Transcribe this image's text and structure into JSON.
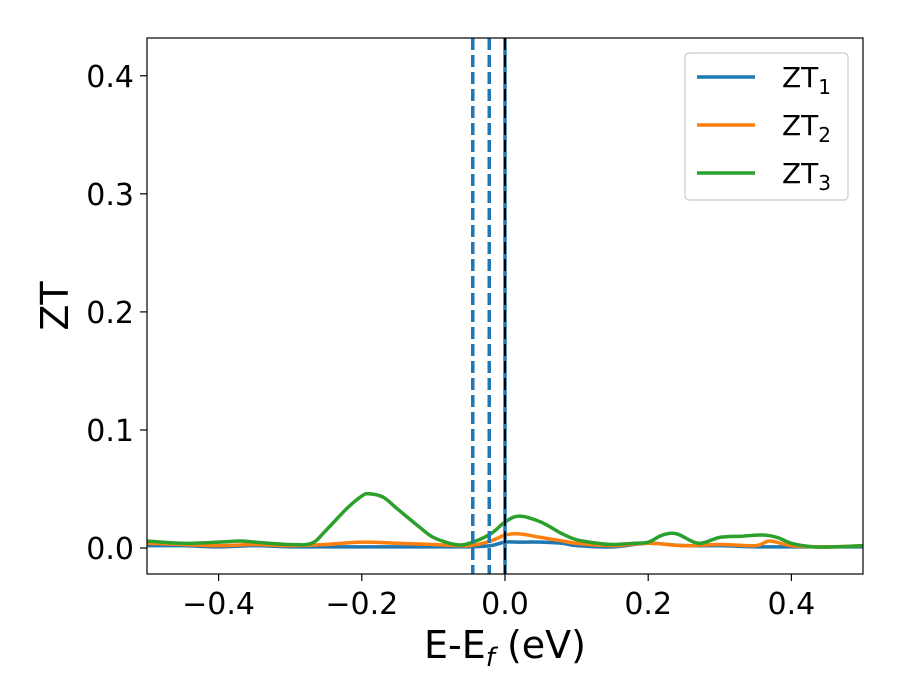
{
  "chart_data": {
    "type": "line",
    "xlabel": "E-E",
    "xlabel_sub": "f",
    "xlabel_unit": " (eV)",
    "ylabel": "ZT",
    "xlim": [
      -0.5,
      0.5
    ],
    "ylim": [
      -0.022,
      0.432
    ],
    "xticks": [
      -0.4,
      -0.2,
      0.0,
      0.2,
      0.4
    ],
    "xtick_labels": [
      "−0.4",
      "−0.2",
      "0.0",
      "0.2",
      "0.4"
    ],
    "yticks": [
      0.0,
      0.1,
      0.2,
      0.3,
      0.4
    ],
    "ytick_labels": [
      "0.0",
      "0.1",
      "0.2",
      "0.3",
      "0.4"
    ],
    "grid": false,
    "legend_position": "top-right",
    "series": [
      {
        "name": "ZT",
        "name_sub": "1",
        "color": "#1f77b4",
        "x": [
          -0.5,
          -0.45,
          -0.4,
          -0.35,
          -0.3,
          -0.25,
          -0.2,
          -0.15,
          -0.1,
          -0.05,
          -0.02,
          0.0,
          0.02,
          0.05,
          0.08,
          0.1,
          0.15,
          0.2,
          0.25,
          0.3,
          0.35,
          0.4,
          0.45,
          0.5
        ],
        "y": [
          0.002,
          0.002,
          0.001,
          0.002,
          0.001,
          0.001,
          0.001,
          0.001,
          0.001,
          0.001,
          0.002,
          0.005,
          0.005,
          0.005,
          0.004,
          0.002,
          0.001,
          0.004,
          0.002,
          0.002,
          0.001,
          0.001,
          0.001,
          0.001
        ]
      },
      {
        "name": "ZT",
        "name_sub": "2",
        "color": "#ff7f0e",
        "x": [
          -0.5,
          -0.45,
          -0.4,
          -0.35,
          -0.3,
          -0.25,
          -0.2,
          -0.15,
          -0.1,
          -0.05,
          -0.02,
          0.0,
          0.02,
          0.05,
          0.08,
          0.1,
          0.15,
          0.2,
          0.25,
          0.3,
          0.35,
          0.37,
          0.4,
          0.45,
          0.5
        ],
        "y": [
          0.004,
          0.003,
          0.002,
          0.003,
          0.002,
          0.003,
          0.005,
          0.004,
          0.003,
          0.002,
          0.006,
          0.011,
          0.012,
          0.009,
          0.006,
          0.004,
          0.002,
          0.004,
          0.002,
          0.003,
          0.002,
          0.006,
          0.002,
          0.001,
          0.002
        ]
      },
      {
        "name": "ZT",
        "name_sub": "3",
        "color": "#2ca02c",
        "x": [
          -0.5,
          -0.45,
          -0.4,
          -0.37,
          -0.35,
          -0.3,
          -0.27,
          -0.25,
          -0.22,
          -0.2,
          -0.19,
          -0.17,
          -0.15,
          -0.12,
          -0.1,
          -0.07,
          -0.05,
          -0.02,
          0.0,
          0.02,
          0.05,
          0.08,
          0.1,
          0.13,
          0.15,
          0.18,
          0.2,
          0.22,
          0.24,
          0.27,
          0.3,
          0.33,
          0.36,
          0.38,
          0.4,
          0.43,
          0.46,
          0.5
        ],
        "y": [
          0.006,
          0.004,
          0.005,
          0.006,
          0.005,
          0.003,
          0.004,
          0.015,
          0.034,
          0.044,
          0.046,
          0.043,
          0.033,
          0.018,
          0.009,
          0.003,
          0.004,
          0.012,
          0.022,
          0.027,
          0.022,
          0.012,
          0.007,
          0.004,
          0.003,
          0.004,
          0.005,
          0.011,
          0.012,
          0.004,
          0.009,
          0.01,
          0.011,
          0.009,
          0.004,
          0.001,
          0.001,
          0.002
        ]
      }
    ],
    "vlines": [
      {
        "x": -0.045,
        "style": "dashed",
        "color": "#1f77b4"
      },
      {
        "x": -0.022,
        "style": "dashed",
        "color": "#1f77b4"
      },
      {
        "x": 0.0,
        "style": "solid",
        "color": "#1f77b4"
      },
      {
        "x": 0.0,
        "style": "dashed",
        "color": "#000000"
      }
    ]
  }
}
